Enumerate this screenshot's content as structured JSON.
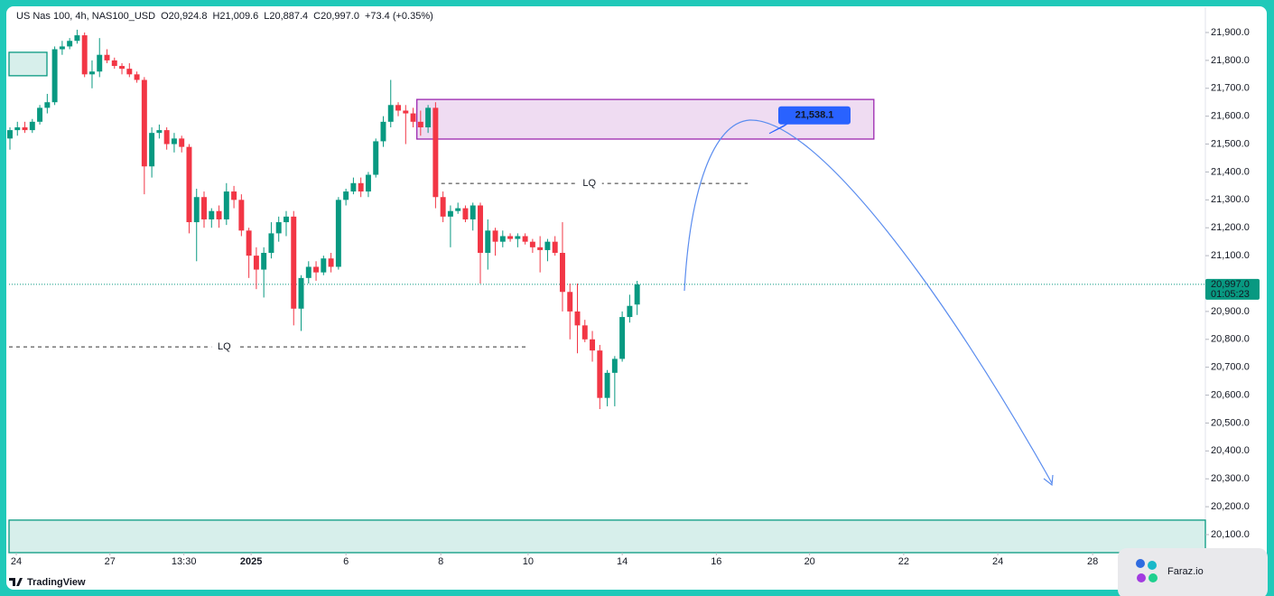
{
  "chart_data": {
    "type": "candlestick",
    "title": "US Nas 100, 4h, NAS100_USD",
    "ohlc_labels": [
      "O20,924.8",
      "H21,009.6",
      "L20,887.4",
      "C20,997.0"
    ],
    "change": "+73.4 (+0.35%)",
    "up_color": "#089981",
    "down_color": "#f23645",
    "grid": false,
    "x": [
      0,
      1,
      2,
      3,
      4,
      5,
      6,
      7,
      8,
      9,
      10,
      11,
      12,
      13,
      14,
      15,
      16,
      17,
      18,
      19,
      20,
      21,
      22,
      23,
      24,
      25,
      26,
      27,
      28,
      29,
      30,
      31,
      32,
      33,
      34,
      35,
      36,
      37,
      38,
      39,
      40,
      41,
      42,
      43,
      44,
      45,
      46,
      47,
      48,
      49,
      50,
      51,
      52,
      53,
      54,
      55,
      56,
      57,
      58,
      59,
      60,
      61,
      62,
      63,
      64,
      65,
      66,
      67,
      68,
      69,
      70,
      71,
      72,
      73,
      74,
      75,
      76,
      77,
      78,
      79,
      80,
      81,
      82,
      83,
      84
    ],
    "open": [
      21520,
      21550,
      21560,
      21550,
      21580,
      21630,
      21650,
      21840,
      21850,
      21870,
      21890,
      21750,
      21760,
      21820,
      21800,
      21780,
      21770,
      21750,
      21730,
      21420,
      21540,
      21550,
      21500,
      21520,
      21490,
      21220,
      21310,
      21230,
      21260,
      21230,
      21330,
      21300,
      21190,
      21100,
      21050,
      21110,
      21180,
      21220,
      21240,
      20910,
      21020,
      21060,
      21040,
      21090,
      21060,
      21300,
      21330,
      21360,
      21330,
      21390,
      21510,
      21580,
      21640,
      21620,
      21610,
      21580,
      21560,
      21630,
      21310,
      21240,
      21260,
      21270,
      21230,
      21280,
      21110,
      21190,
      21150,
      21170,
      21160,
      21170,
      21150,
      21130,
      21120,
      21150,
      21110,
      20970,
      20900,
      20850,
      20800,
      20760,
      20590,
      20680,
      20730,
      20880,
      20924.8
    ],
    "high": [
      21560,
      21580,
      21580,
      21590,
      21640,
      21680,
      21850,
      21870,
      21880,
      21910,
      21900,
      21800,
      21880,
      21840,
      21810,
      21790,
      21790,
      21760,
      21740,
      21560,
      21570,
      21560,
      21540,
      21530,
      21500,
      21340,
      21330,
      21270,
      21280,
      21360,
      21350,
      21320,
      21200,
      21130,
      21130,
      21220,
      21240,
      21260,
      21260,
      21030,
      21080,
      21080,
      21100,
      21110,
      21310,
      21340,
      21380,
      21380,
      21400,
      21520,
      21600,
      21730,
      21650,
      21640,
      21630,
      21620,
      21640,
      21650,
      21330,
      21280,
      21290,
      21280,
      21290,
      21290,
      21230,
      21200,
      21190,
      21180,
      21180,
      21180,
      21160,
      21170,
      21160,
      21170,
      21220,
      21000,
      21000,
      20870,
      20830,
      20780,
      20690,
      20740,
      20900,
      20960,
      21009.6
    ],
    "low": [
      21480,
      21530,
      21540,
      21540,
      21570,
      21610,
      21640,
      21820,
      21840,
      21860,
      21740,
      21700,
      21740,
      21790,
      21770,
      21750,
      21740,
      21720,
      21320,
      21380,
      21520,
      21480,
      21470,
      21470,
      21180,
      21080,
      21200,
      21200,
      21200,
      21210,
      21270,
      21170,
      21020,
      20980,
      20950,
      21090,
      21150,
      21170,
      20850,
      20830,
      21000,
      21010,
      21030,
      21040,
      21050,
      21280,
      21320,
      21310,
      21310,
      21380,
      21490,
      21560,
      21600,
      21500,
      21560,
      21530,
      21540,
      21270,
      21220,
      21130,
      21250,
      21220,
      21190,
      21000,
      21050,
      21100,
      21130,
      21150,
      21130,
      21140,
      21110,
      21040,
      21080,
      21100,
      20900,
      20800,
      20750,
      20790,
      20720,
      20550,
      20560,
      20560,
      20720,
      20860,
      20887.4
    ],
    "close": [
      21550,
      21560,
      21550,
      21580,
      21630,
      21650,
      21840,
      21850,
      21870,
      21890,
      21750,
      21760,
      21820,
      21800,
      21780,
      21770,
      21750,
      21730,
      21420,
      21540,
      21550,
      21500,
      21520,
      21490,
      21220,
      21310,
      21230,
      21260,
      21230,
      21330,
      21300,
      21190,
      21100,
      21050,
      21110,
      21180,
      21220,
      21240,
      20910,
      21020,
      21060,
      21040,
      21090,
      21060,
      21300,
      21330,
      21360,
      21330,
      21390,
      21510,
      21580,
      21640,
      21620,
      21610,
      21580,
      21560,
      21630,
      21310,
      21240,
      21260,
      21270,
      21230,
      21280,
      21110,
      21190,
      21150,
      21170,
      21160,
      21170,
      21150,
      21130,
      21120,
      21150,
      21110,
      20970,
      20900,
      20850,
      20800,
      20760,
      20590,
      20680,
      20730,
      20880,
      20920,
      20997.0
    ],
    "xlim": [
      -0.12,
      160.1
    ],
    "ylim": [
      20035.3,
      21990.6
    ],
    "xticks": [
      {
        "value": 0.85,
        "label": "24"
      },
      {
        "value": 13.4,
        "label": "27"
      },
      {
        "value": 23.3,
        "label": "13:30"
      },
      {
        "value": 32.3,
        "label": "2025"
      },
      {
        "value": 45,
        "label": "6"
      },
      {
        "value": 57.7,
        "label": "8"
      },
      {
        "value": 69.4,
        "label": "10"
      },
      {
        "value": 82,
        "label": "14"
      },
      {
        "value": 94.6,
        "label": "16"
      },
      {
        "value": 107.1,
        "label": "20"
      },
      {
        "value": 119.7,
        "label": "22"
      },
      {
        "value": 132.3,
        "label": "24"
      },
      {
        "value": 145,
        "label": "28"
      }
    ],
    "yticks": [
      {
        "value": 20100,
        "label": "20,100.0"
      },
      {
        "value": 20200,
        "label": "20,200.0"
      },
      {
        "value": 20300,
        "label": "20,300.0"
      },
      {
        "value": 20400,
        "label": "20,400.0"
      },
      {
        "value": 20500,
        "label": "20,500.0"
      },
      {
        "value": 20600,
        "label": "20,600.0"
      },
      {
        "value": 20700,
        "label": "20,700.0"
      },
      {
        "value": 20800,
        "label": "20,800.0"
      },
      {
        "value": 20900,
        "label": "20,900.0"
      },
      {
        "value": 21100,
        "label": "21,100.0"
      },
      {
        "value": 21200,
        "label": "21,200.0"
      },
      {
        "value": 21300,
        "label": "21,300.0"
      },
      {
        "value": 21400,
        "label": "21,400.0"
      },
      {
        "value": 21500,
        "label": "21,500.0"
      },
      {
        "value": 21600,
        "label": "21,600.0"
      },
      {
        "value": 21700,
        "label": "21,700.0"
      },
      {
        "value": 21800,
        "label": "21,800.0"
      },
      {
        "value": 21900,
        "label": "21,900.0"
      }
    ],
    "zones": [
      {
        "color": "#089981",
        "xlim": [
          -0.12,
          4.96
        ],
        "ylim": [
          21745,
          21829
        ]
      },
      {
        "color": "#089981",
        "xlim": [
          -0.12,
          160.1
        ],
        "ylim": [
          20035.3,
          20152
        ]
      },
      {
        "color": "#9c27b0",
        "xlim": [
          54.5,
          115.7
        ],
        "ylim": [
          21518,
          21660
        ]
      }
    ],
    "lq_levels": [
      {
        "label": "LQ",
        "value": 21359,
        "xlim": [
          56.8,
          98.8
        ],
        "label_x": 77.6
      },
      {
        "label": "LQ",
        "value": 20773,
        "xlim": [
          -0.12,
          69.4
        ],
        "label_x": 28.7
      }
    ],
    "target": {
      "value": 21538.1,
      "label": "21,538.1"
    },
    "last_price": {
      "value": 20997.0,
      "label": "20,997.0"
    },
    "countdown": "01:05:23"
  },
  "branding": {
    "source": "TradingView",
    "watermark": "Faraz.io"
  }
}
